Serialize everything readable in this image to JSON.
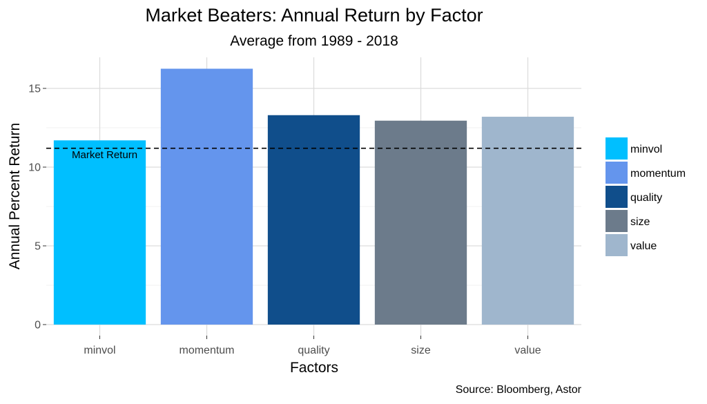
{
  "chart_data": {
    "type": "bar",
    "title": "Market Beaters: Annual Return by Factor",
    "subtitle": "Average from 1989 - 2018",
    "xlabel": "Factors",
    "ylabel": "Annual Percent Return",
    "categories": [
      "minvol",
      "momentum",
      "quality",
      "size",
      "value"
    ],
    "values": [
      11.7,
      16.25,
      13.3,
      12.95,
      13.2
    ],
    "colors": [
      "#00bfff",
      "#6495ed",
      "#104e8b",
      "#6c7b8b",
      "#9fb6cd"
    ],
    "ylim": [
      0,
      17
    ],
    "yticks": [
      0,
      5,
      10,
      15
    ],
    "reference_line": {
      "label": "Market Return",
      "value": 11.2,
      "style": "dashed"
    },
    "legend": {
      "position": "right",
      "entries": [
        "minvol",
        "momentum",
        "quality",
        "size",
        "value"
      ]
    },
    "grid": true,
    "caption": "Source: Bloomberg, Astor"
  }
}
